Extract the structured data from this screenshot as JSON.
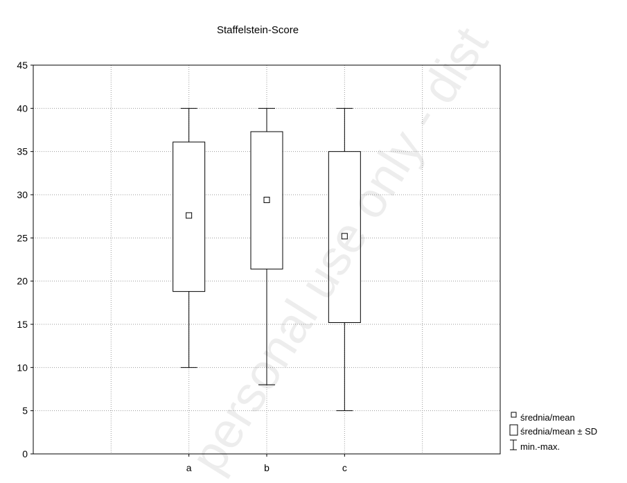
{
  "chart_data": {
    "type": "boxplot",
    "title": "Staffelstein-Score",
    "categories": [
      "a",
      "b",
      "c"
    ],
    "ylim": [
      0,
      45
    ],
    "yticks": [
      0,
      5,
      10,
      15,
      20,
      25,
      30,
      35,
      40,
      45
    ],
    "grid": true,
    "series": [
      {
        "category": "a",
        "min": 10,
        "mean_minus_sd": 18.8,
        "mean": 27.6,
        "mean_plus_sd": 36.1,
        "max": 40
      },
      {
        "category": "b",
        "min": 8,
        "mean_minus_sd": 21.4,
        "mean": 29.4,
        "mean_plus_sd": 37.3,
        "max": 40
      },
      {
        "category": "c",
        "min": 5,
        "mean_minus_sd": 15.2,
        "mean": 25.2,
        "mean_plus_sd": 35.0,
        "max": 40
      }
    ],
    "legend": {
      "placement": "bottom-right",
      "items": [
        {
          "symbol": "small-square",
          "label": "średnia/mean"
        },
        {
          "symbol": "box",
          "label": "średnia/mean ± SD"
        },
        {
          "symbol": "whisker",
          "label": "min.-max."
        }
      ]
    }
  },
  "watermark": "personal use only - dist"
}
